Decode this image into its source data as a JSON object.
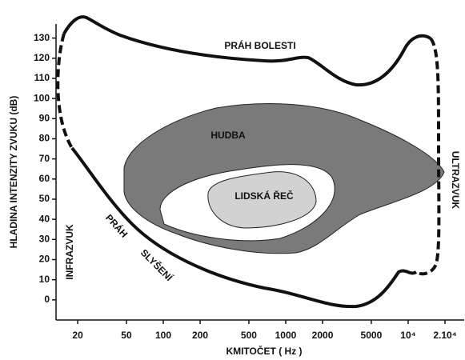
{
  "chart_data": {
    "type": "region",
    "xlabel": "KMITOČET ( Hz )",
    "ylabel": "HLADINA INTENZITY ZVUKU (dB)",
    "xscale": "log",
    "xlim": [
      13.3,
      28700
    ],
    "xticks": [
      20,
      50,
      100,
      200,
      500,
      1000,
      2000,
      5000,
      {
        "value": 10000,
        "label": "10⁴"
      },
      {
        "value": 20000,
        "label": "2.10⁴"
      }
    ],
    "ylim": [
      -10,
      137
    ],
    "yticks": [
      0,
      10,
      20,
      30,
      40,
      50,
      60,
      70,
      80,
      90,
      100,
      110,
      120,
      130
    ],
    "annotations": [
      "PRÁH BOLESTI",
      "HUDBA",
      "LIDSKÁ ŘEČ",
      "PRÁH",
      "SLYŠENÍ",
      "INFRAZVUK",
      "ULTRAZVUK"
    ]
  }
}
